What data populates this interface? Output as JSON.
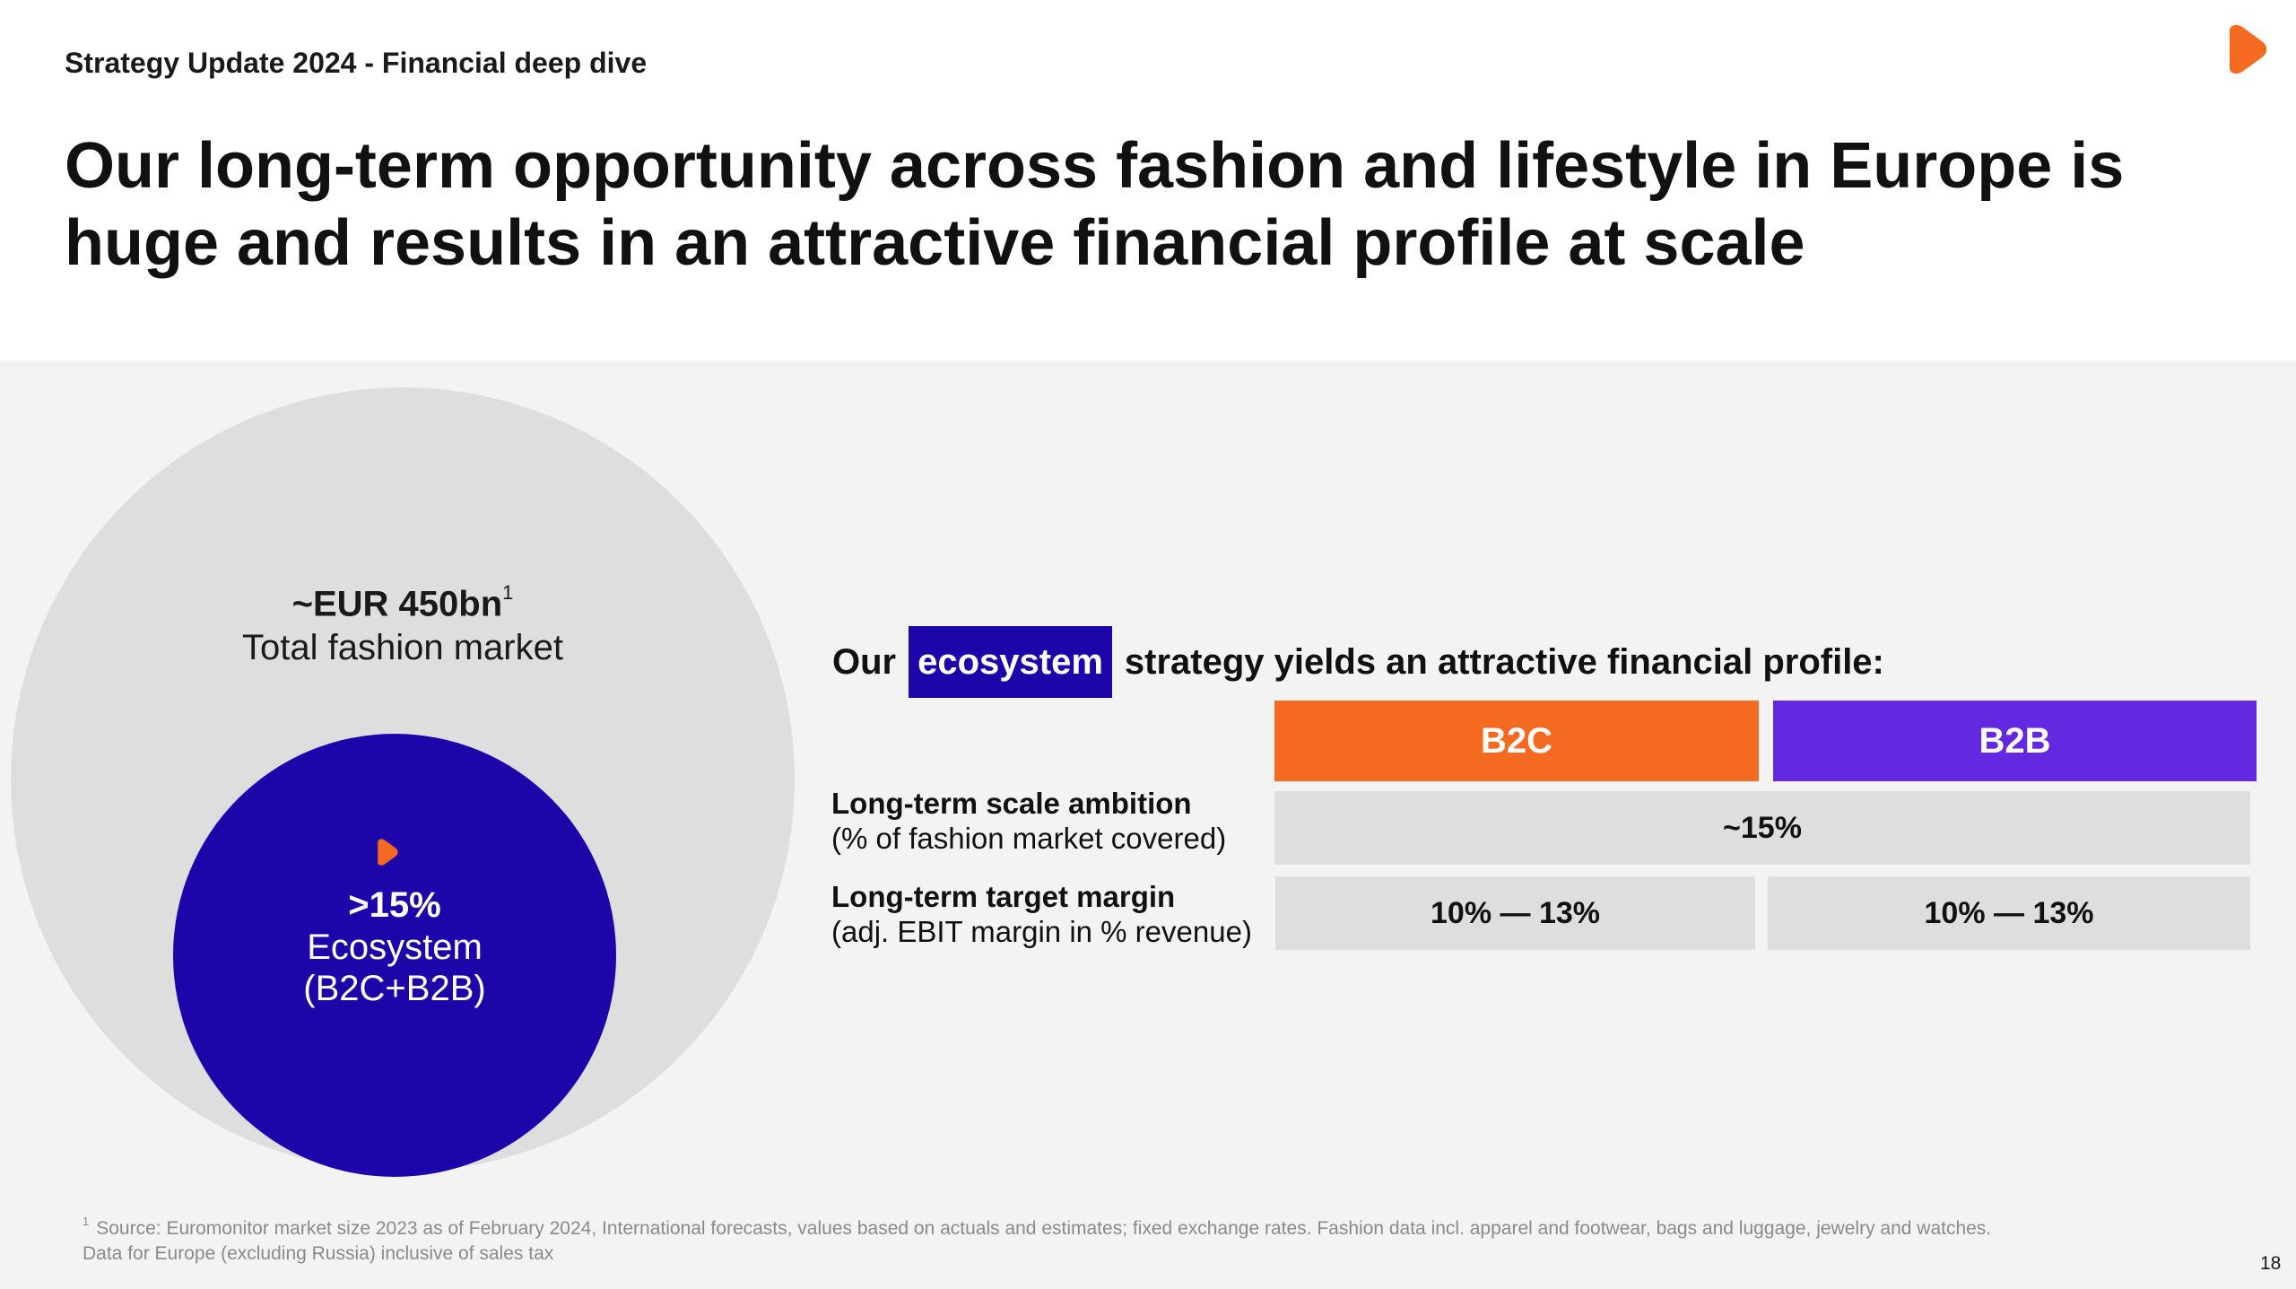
{
  "header": {
    "breadcrumb": "Strategy Update 2024 - Financial deep dive",
    "title": "Our long-term opportunity across fashion and lifestyle in Europe is huge and results in an attractive financial profile at scale"
  },
  "market": {
    "value": "~EUR 450bn",
    "footnote_marker": "1",
    "label": "Total fashion market"
  },
  "ecosystem": {
    "value": ">15%",
    "label_line1": "Ecosystem",
    "label_line2": "(B2C+B2B)"
  },
  "strategy": {
    "prefix": "Our",
    "highlight": "ecosystem",
    "suffix": "strategy yields an attractive financial profile:"
  },
  "table": {
    "columns": [
      "B2C",
      "B2B"
    ],
    "rows": [
      {
        "label": "Long-term scale ambition",
        "sublabel": "(% of fashion market covered)",
        "value_combined": "~15%"
      },
      {
        "label": "Long-term target margin",
        "sublabel": "(adj. EBIT margin in % revenue)",
        "values": [
          "10% — 13%",
          "10% — 13%"
        ]
      }
    ]
  },
  "footnote": {
    "marker": "1",
    "line1": "Source:  Euromonitor market size 2023 as of February 2024, International forecasts, values based on actuals and estimates; fixed exchange rates. Fashion data incl. apparel and footwear, bags and luggage, jewelry and watches.",
    "line2": "Data for Europe (excluding Russia) inclusive of sales tax"
  },
  "page_number": "18",
  "colors": {
    "brand_orange": "#f56a21",
    "b2b_purple": "#6328e0",
    "ecosystem_blue": "#1c06aa",
    "panel_bg": "#f3f3f3",
    "cell_gray": "#dedede"
  },
  "icons": {
    "logo": "zalando-play-icon",
    "circle_logo": "zalando-play-icon"
  }
}
